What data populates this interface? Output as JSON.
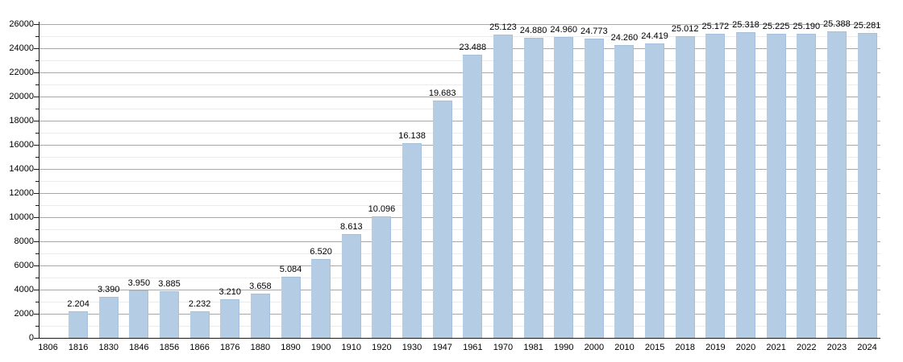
{
  "chart_data": {
    "type": "bar",
    "title": "",
    "xlabel": "",
    "ylabel": "",
    "legend_position": "none",
    "grid": true,
    "ylim": [
      0,
      26000
    ],
    "y_major_step": 2000,
    "y_minor_step": 1000,
    "y_tick_labels": [
      "0",
      "2000",
      "4000",
      "6000",
      "8000",
      "10000",
      "12000",
      "14000",
      "16000",
      "18000",
      "20000",
      "22000",
      "24000",
      "26000"
    ],
    "categories": [
      "1806",
      "1816",
      "1830",
      "1846",
      "1856",
      "1866",
      "1876",
      "1880",
      "1890",
      "1900",
      "1910",
      "1920",
      "1930",
      "1947",
      "1961",
      "1970",
      "1981",
      "1990",
      "2000",
      "2010",
      "2015",
      "2018",
      "2019",
      "2020",
      "2021",
      "2022",
      "2023",
      "2024"
    ],
    "values": [
      null,
      2204,
      3390,
      3950,
      3885,
      2232,
      3210,
      3658,
      5084,
      6520,
      8613,
      10096,
      16138,
      19683,
      23488,
      25123,
      24880,
      24960,
      24773,
      24260,
      24419,
      25012,
      25172,
      25318,
      25225,
      25190,
      25388,
      25281
    ],
    "value_labels": [
      "",
      "2.204",
      "3.390",
      "3.950",
      "3.885",
      "2.232",
      "3.210",
      "3.658",
      "5.084",
      "6.520",
      "8.613",
      "10.096",
      "16.138",
      "19.683",
      "23.488",
      "25.123",
      "24.880",
      "24.960",
      "24.773",
      "24.260",
      "24.419",
      "25.012",
      "25.172",
      "25.318",
      "25.225",
      "25.190",
      "25.388",
      "25.281"
    ],
    "colors": {
      "bar_fill": "#b4cce4",
      "bar_edge": "#a5c0dc",
      "major_grid": "#a8a8a8",
      "minor_grid": "#ebebeb",
      "axis": "#1a1a1a",
      "text": "#000000",
      "background": "#ffffff"
    }
  }
}
